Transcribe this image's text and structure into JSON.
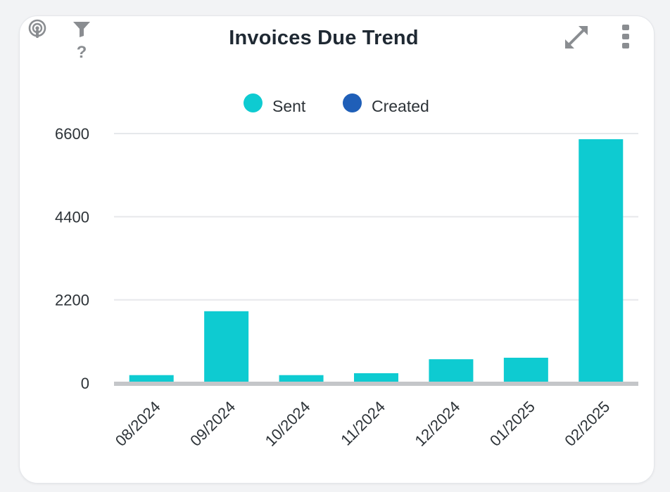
{
  "widget": {
    "title": "Invoices Due Trend",
    "icons": {
      "left": [
        "podcast-icon",
        "filter-icon",
        "help-icon"
      ],
      "right": [
        "expand-icon",
        "more-vertical-icon"
      ]
    },
    "icon_color": "#8a8d91"
  },
  "legend": [
    {
      "label": "Sent",
      "color": "#0ecbd1"
    },
    {
      "label": "Created",
      "color": "#1f5fb8"
    }
  ],
  "chart_data": {
    "type": "bar",
    "categories": [
      "08/2024",
      "09/2024",
      "10/2024",
      "11/2024",
      "12/2024",
      "01/2025",
      "02/2025"
    ],
    "series": [
      {
        "name": "Sent",
        "color": "#0ecbd1",
        "values": [
          210,
          1900,
          210,
          260,
          630,
          670,
          6450
        ]
      },
      {
        "name": "Created",
        "color": "#1f5fb8",
        "values": [
          0,
          0,
          0,
          0,
          0,
          0,
          0
        ]
      }
    ],
    "yticks": [
      "0",
      "2200",
      "4400",
      "6600"
    ],
    "ylim": [
      0,
      6600
    ],
    "grid": true,
    "legend_position": "top-center",
    "title": "Invoices Due Trend",
    "xlabel": "",
    "ylabel": ""
  }
}
